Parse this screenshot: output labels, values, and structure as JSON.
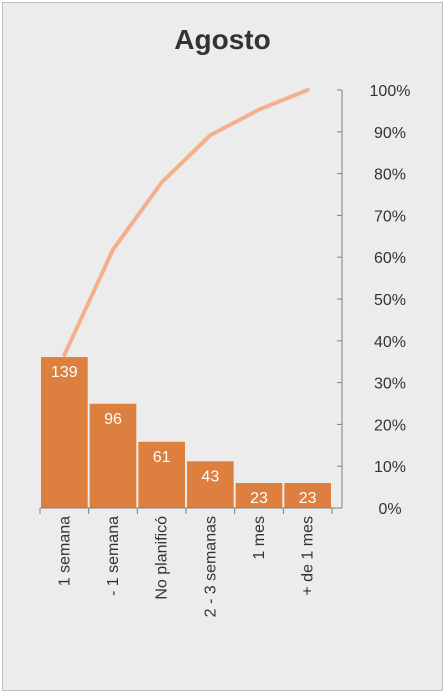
{
  "chart_data": {
    "type": "bar",
    "title": "Agosto",
    "categories": [
      "1 semana",
      "- 1 semana",
      "No planificó",
      "2 - 3 semanas",
      "1 mes",
      "+ de 1 mes"
    ],
    "series": [
      {
        "type": "bar",
        "values": [
          139,
          96,
          61,
          43,
          23,
          23
        ],
        "data_labels": [
          "139",
          "96",
          "61",
          "43",
          "23",
          "23"
        ]
      },
      {
        "type": "line",
        "axis": "right",
        "values": [
          36.6,
          61.8,
          77.9,
          89.2,
          95.3,
          100
        ]
      }
    ],
    "y2_ticks": [
      "0%",
      "10%",
      "20%",
      "30%",
      "40%",
      "50%",
      "60%",
      "70%",
      "80%",
      "90%",
      "100%"
    ],
    "y2lim": [
      0,
      100
    ],
    "grid": false,
    "legend": "none",
    "colors": {
      "bar": "#dd7f3e",
      "line": "#f4b08d",
      "background": "#ececec",
      "axis": "#7f7f7f",
      "text": "#333333",
      "label": "#ffffff"
    }
  }
}
